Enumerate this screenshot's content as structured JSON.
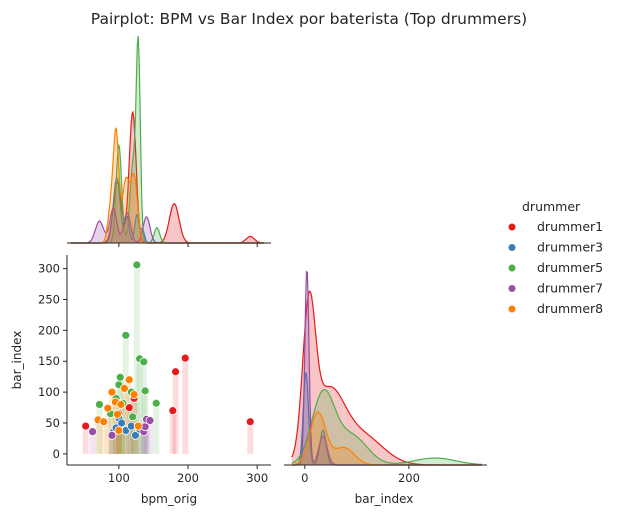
{
  "chart_data": {
    "type": "pairplot",
    "title": "Pairplot: BPM vs Bar Index por baterista (Top drummers)",
    "legend": {
      "title": "drummer",
      "placement": "right",
      "entries": [
        "drummer1",
        "drummer3",
        "drummer5",
        "drummer7",
        "drummer8"
      ]
    },
    "colors": {
      "drummer1": "#e41a1c",
      "drummer3": "#377eb8",
      "drummer5": "#4daf4a",
      "drummer7": "#984ea3",
      "drummer8": "#ff7f00"
    },
    "variables": [
      "bpm_orig",
      "bar_index"
    ],
    "axes": {
      "bpm": {
        "label": "bpm_orig",
        "range": [
          25,
          320
        ],
        "ticks": [
          100,
          200,
          300
        ]
      },
      "bar": {
        "label": "bar_index",
        "range": [
          -18,
          322
        ],
        "ticks": [
          0,
          50,
          100,
          150,
          200,
          250,
          300
        ]
      },
      "bar_x": {
        "label": "bar_index",
        "range": [
          -40,
          350
        ],
        "ticks": [
          0,
          200
        ]
      }
    },
    "scatter": {
      "series": [
        {
          "name": "drummer1",
          "points": [
            [
              52,
              45
            ],
            [
              122,
              90
            ],
            [
              178,
              70
            ],
            [
              182,
              133
            ],
            [
              196,
              155
            ],
            [
              290,
              52
            ],
            [
              100,
              65
            ],
            [
              115,
              75
            ]
          ]
        },
        {
          "name": "drummer3",
          "points": [
            [
              92,
              35
            ],
            [
              96,
              42
            ],
            [
              100,
              58
            ],
            [
              104,
              50
            ],
            [
              110,
              38
            ],
            [
              118,
              45
            ],
            [
              124,
              30
            ],
            [
              130,
              40
            ]
          ]
        },
        {
          "name": "drummer5",
          "points": [
            [
              72,
              80
            ],
            [
              88,
              65
            ],
            [
              96,
              90
            ],
            [
              100,
              112
            ],
            [
              102,
              124
            ],
            [
              110,
              192
            ],
            [
              118,
              100
            ],
            [
              126,
              306
            ],
            [
              130,
              154
            ],
            [
              136,
              149
            ],
            [
              138,
              102
            ],
            [
              154,
              82
            ],
            [
              120,
              60
            ],
            [
              106,
              82
            ]
          ]
        },
        {
          "name": "drummer7",
          "points": [
            [
              62,
              36
            ],
            [
              136,
              36
            ],
            [
              138,
              44
            ],
            [
              140,
              56
            ],
            [
              145,
              54
            ],
            [
              90,
              30
            ]
          ]
        },
        {
          "name": "drummer8",
          "points": [
            [
              70,
              55
            ],
            [
              78,
              52
            ],
            [
              84,
              74
            ],
            [
              90,
              100
            ],
            [
              95,
              84
            ],
            [
              98,
              64
            ],
            [
              100,
              38
            ],
            [
              103,
              80
            ],
            [
              108,
              106
            ],
            [
              115,
              120
            ],
            [
              122,
              96
            ],
            [
              128,
              45
            ]
          ]
        }
      ]
    },
    "kde_bpm": {
      "series": [
        {
          "name": "drummer1",
          "peaks": [
            [
              98,
              0.028,
              6
            ],
            [
              120,
              0.06,
              5
            ],
            [
              180,
              0.018,
              7
            ],
            [
              290,
              0.003,
              6
            ]
          ]
        },
        {
          "name": "drummer3",
          "peaks": [
            [
              97,
              0.03,
              5
            ],
            [
              112,
              0.012,
              3
            ],
            [
              126,
              0.013,
              3
            ],
            [
              134,
              0.006,
              3
            ]
          ]
        },
        {
          "name": "drummer5",
          "peaks": [
            [
              100,
              0.045,
              4
            ],
            [
              120,
              0.035,
              4
            ],
            [
              128,
              0.09,
              3
            ],
            [
              155,
              0.007,
              4
            ]
          ]
        },
        {
          "name": "drummer7",
          "peaks": [
            [
              72,
              0.01,
              6
            ],
            [
              92,
              0.016,
              5
            ],
            [
              112,
              0.014,
              5
            ],
            [
              140,
              0.012,
              5
            ]
          ]
        },
        {
          "name": "drummer8",
          "peaks": [
            [
              96,
              0.05,
              4
            ],
            [
              110,
              0.028,
              5
            ],
            [
              122,
              0.03,
              5
            ],
            [
              88,
              0.015,
              4
            ]
          ]
        }
      ]
    },
    "kde_bar": {
      "series": [
        {
          "name": "drummer1",
          "peaks": [
            [
              8,
              0.012,
              12
            ],
            [
              45,
              0.006,
              30
            ],
            [
              110,
              0.0025,
              40
            ]
          ]
        },
        {
          "name": "drummer3",
          "peaks": [
            [
              2,
              0.008,
              5
            ],
            [
              35,
              0.003,
              6
            ]
          ]
        },
        {
          "name": "drummer5",
          "peaks": [
            [
              35,
              0.006,
              22
            ],
            [
              90,
              0.0025,
              30
            ],
            [
              250,
              0.0006,
              40
            ]
          ]
        },
        {
          "name": "drummer7",
          "peaks": [
            [
              4,
              0.017,
              4
            ],
            [
              35,
              0.0025,
              8
            ]
          ]
        },
        {
          "name": "drummer8",
          "peaks": [
            [
              25,
              0.0045,
              15
            ],
            [
              75,
              0.0015,
              20
            ]
          ]
        }
      ]
    }
  }
}
